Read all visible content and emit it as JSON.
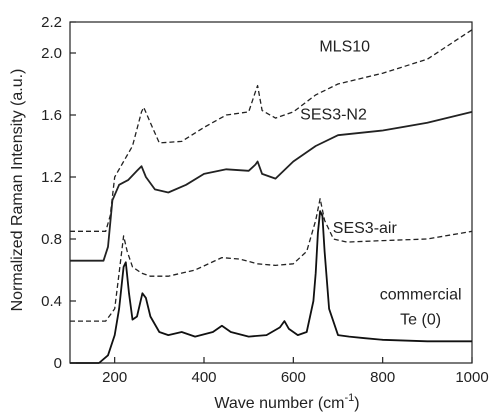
{
  "chart_data": {
    "type": "line",
    "xlabel": "Wave number (cm",
    "xlabel_sup": "-1",
    "xlabel_tail": ")",
    "ylabel": "Normalized Raman Intensity (a.u.)",
    "xlim": [
      100,
      1000
    ],
    "ylim": [
      0,
      2.2
    ],
    "x_ticks": [
      200,
      400,
      600,
      800,
      1000
    ],
    "x_tick_labels": [
      "200",
      "400",
      "600",
      "800",
      "1000"
    ],
    "y_ticks": [
      0,
      0.4,
      0.8,
      1.2,
      1.6,
      2.0,
      2.2
    ],
    "y_tick_labels": [
      "0",
      "0.4",
      "0.8",
      "1.2",
      "1.6",
      "2.0",
      "2.2"
    ],
    "grid": false,
    "series": [
      {
        "name": "MLS10",
        "style": "dashed",
        "color": "#222222",
        "x": [
          100,
          180,
          190,
          200,
          220,
          240,
          260,
          265,
          280,
          300,
          350,
          400,
          450,
          500,
          515,
          520,
          530,
          560,
          600,
          650,
          700,
          800,
          900,
          1000
        ],
        "y": [
          0.85,
          0.85,
          0.95,
          1.2,
          1.3,
          1.4,
          1.62,
          1.65,
          1.55,
          1.42,
          1.43,
          1.52,
          1.6,
          1.62,
          1.75,
          1.79,
          1.63,
          1.58,
          1.62,
          1.73,
          1.8,
          1.87,
          1.96,
          2.15
        ]
      },
      {
        "name": "SES3-N2",
        "style": "solid",
        "color": "#222222",
        "x": [
          100,
          175,
          185,
          195,
          210,
          230,
          250,
          260,
          270,
          290,
          320,
          360,
          400,
          450,
          500,
          515,
          520,
          530,
          560,
          600,
          650,
          700,
          800,
          900,
          1000
        ],
        "y": [
          0.66,
          0.66,
          0.75,
          1.05,
          1.15,
          1.18,
          1.24,
          1.27,
          1.2,
          1.12,
          1.1,
          1.15,
          1.22,
          1.25,
          1.24,
          1.28,
          1.3,
          1.22,
          1.19,
          1.3,
          1.4,
          1.47,
          1.5,
          1.55,
          1.62
        ]
      },
      {
        "name": "SES3-air",
        "style": "dashed",
        "color": "#222222",
        "x": [
          100,
          180,
          200,
          210,
          220,
          228,
          240,
          260,
          280,
          320,
          380,
          440,
          480,
          520,
          560,
          600,
          630,
          650,
          660,
          670,
          690,
          720,
          800,
          900,
          1000
        ],
        "y": [
          0.27,
          0.27,
          0.35,
          0.58,
          0.82,
          0.72,
          0.62,
          0.58,
          0.56,
          0.56,
          0.6,
          0.68,
          0.67,
          0.64,
          0.63,
          0.64,
          0.72,
          0.92,
          1.06,
          0.92,
          0.8,
          0.78,
          0.79,
          0.8,
          0.85
        ]
      },
      {
        "name": "commercial Te (0)",
        "style": "solid",
        "color": "#111111",
        "x": [
          100,
          165,
          185,
          200,
          210,
          220,
          225,
          232,
          240,
          250,
          262,
          270,
          280,
          300,
          320,
          350,
          380,
          420,
          440,
          460,
          500,
          540,
          570,
          580,
          590,
          610,
          630,
          645,
          650,
          655,
          660,
          665,
          670,
          680,
          700,
          725,
          760,
          800,
          900,
          1000
        ],
        "y": [
          0.0,
          0.0,
          0.05,
          0.18,
          0.35,
          0.62,
          0.65,
          0.45,
          0.28,
          0.3,
          0.45,
          0.42,
          0.3,
          0.2,
          0.18,
          0.2,
          0.17,
          0.2,
          0.24,
          0.2,
          0.17,
          0.18,
          0.23,
          0.27,
          0.22,
          0.18,
          0.2,
          0.4,
          0.58,
          0.84,
          0.98,
          0.95,
          0.72,
          0.35,
          0.18,
          0.17,
          0.16,
          0.15,
          0.14,
          0.14
        ]
      }
    ],
    "annotations": [
      {
        "text": "MLS10",
        "x": 715,
        "y": 2.01
      },
      {
        "text": "SES3-N2",
        "x": 690,
        "y": 1.57
      },
      {
        "text": "SES3-air",
        "x": 760,
        "y": 0.84
      },
      {
        "text": "commercial",
        "x": 885,
        "y": 0.41
      },
      {
        "text": "Te (0)",
        "x": 885,
        "y": 0.25
      }
    ]
  }
}
